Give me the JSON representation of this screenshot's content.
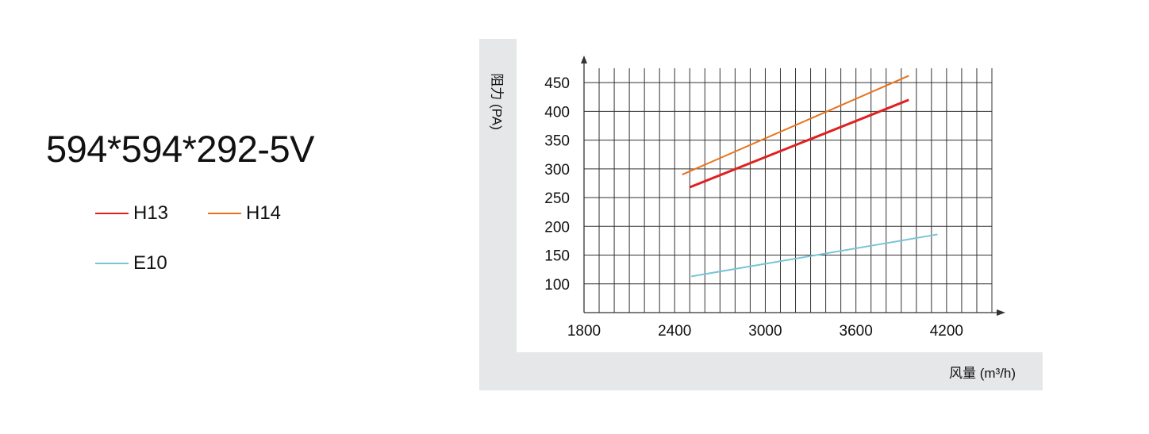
{
  "title": "594*594*292-5V",
  "legend": [
    {
      "label": "H13",
      "color": "#e02020"
    },
    {
      "label": "H14",
      "color": "#e8731c"
    },
    {
      "label": "E10",
      "color": "#78c5d6"
    }
  ],
  "chart_data": {
    "type": "line",
    "xlabel": "风量 (m³/h)",
    "ylabel": "阻力 (PA)",
    "xlim": [
      1800,
      4500
    ],
    "ylim": [
      50,
      475
    ],
    "x_ticks": [
      1800,
      2400,
      3000,
      3600,
      4200
    ],
    "y_ticks": [
      100,
      150,
      200,
      250,
      300,
      350,
      400,
      450
    ],
    "grid": true,
    "series": [
      {
        "name": "H13",
        "color": "#e02020",
        "x": [
          2500,
          3950
        ],
        "y": [
          268,
          420
        ]
      },
      {
        "name": "H14",
        "color": "#e8731c",
        "x": [
          2450,
          3950
        ],
        "y": [
          290,
          462
        ]
      },
      {
        "name": "E10",
        "color": "#78c5d6",
        "x": [
          2510,
          4140
        ],
        "y": [
          113,
          186
        ]
      }
    ]
  }
}
